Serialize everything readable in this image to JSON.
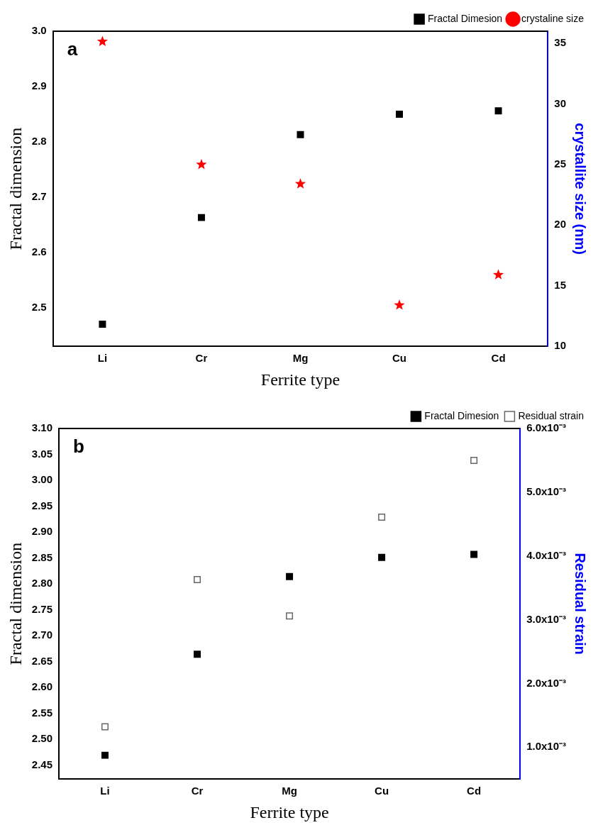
{
  "chart_data": [
    {
      "type": "scatter",
      "categories": [
        "Li",
        "Cr",
        "Mg",
        "Cu",
        "Cd"
      ],
      "xlabel": "Ferrite type",
      "ylabel": "Fractal dimension",
      "y2label": "crystallite size (nm)",
      "series": [
        {
          "name": "Fractal Dimesion",
          "color": "#000000",
          "marker": "square",
          "values": [
            2.47,
            2.663,
            2.813,
            2.85,
            2.856
          ]
        },
        {
          "name": "crystaline size",
          "color": "#ff0000",
          "marker": "star",
          "axis": "y2",
          "values": [
            35.15,
            25.0,
            23.4,
            13.4,
            15.9
          ]
        }
      ],
      "ylim": [
        2.43,
        3.0
      ],
      "yticks": [
        2.5,
        2.6,
        2.7,
        2.8,
        2.9,
        {
          "value": 3.0,
          "label": "3.0"
        }
      ],
      "y2lim": [
        10,
        36
      ],
      "y2ticks": [
        10,
        15,
        20,
        25,
        30,
        35
      ],
      "annotations": [
        "a"
      ],
      "legend": "top right",
      "grid": false
    },
    {
      "type": "scatter",
      "categories": [
        "Li",
        "Cr",
        "Mg",
        "Cu",
        "Cd"
      ],
      "xlabel": "Ferrite type",
      "ylabel": "Fractal dimension",
      "y2label": "Residual strain",
      "series": [
        {
          "name": "Fractal Dimesion",
          "color": "#000000",
          "marker": "square",
          "values": [
            2.469,
            2.664,
            2.814,
            2.851,
            2.857
          ]
        },
        {
          "name": "Residual strain",
          "color": "#666666",
          "marker": "square",
          "axis": "y2",
          "values": [
            0.00132,
            0.00363,
            0.00306,
            0.00461,
            0.0055
          ]
        }
      ],
      "ylim": [
        2.423,
        3.1
      ],
      "yticks": [
        2.45,
        {
          "value": 2.5,
          "label": "2.50"
        },
        2.55,
        {
          "value": 2.6,
          "label": "2.60"
        },
        2.65,
        {
          "value": 2.7,
          "label": "2.70"
        },
        2.75,
        {
          "value": 2.8,
          "label": "2.80"
        },
        2.85,
        {
          "value": 2.9,
          "label": "2.90"
        },
        2.95,
        {
          "value": 3.0,
          "label": "3.00"
        },
        3.05,
        {
          "value": 3.1,
          "label": "3.10"
        }
      ],
      "y2lim": [
        0.0005,
        0.006
      ],
      "y2ticks": [
        {
          "value": 0.001,
          "label": "1.0x10⁻³"
        },
        {
          "value": 0.002,
          "label": "2.0x10⁻³"
        },
        {
          "value": 0.003,
          "label": "3.0x10⁻³"
        },
        {
          "value": 0.004,
          "label": "4.0x10⁻³"
        },
        {
          "value": 0.005,
          "label": "5.0x10⁻³"
        },
        {
          "value": 0.006,
          "label": "6.0x10⁻³"
        }
      ],
      "annotations": [
        "b"
      ],
      "legend": "top right",
      "grid": false
    }
  ]
}
